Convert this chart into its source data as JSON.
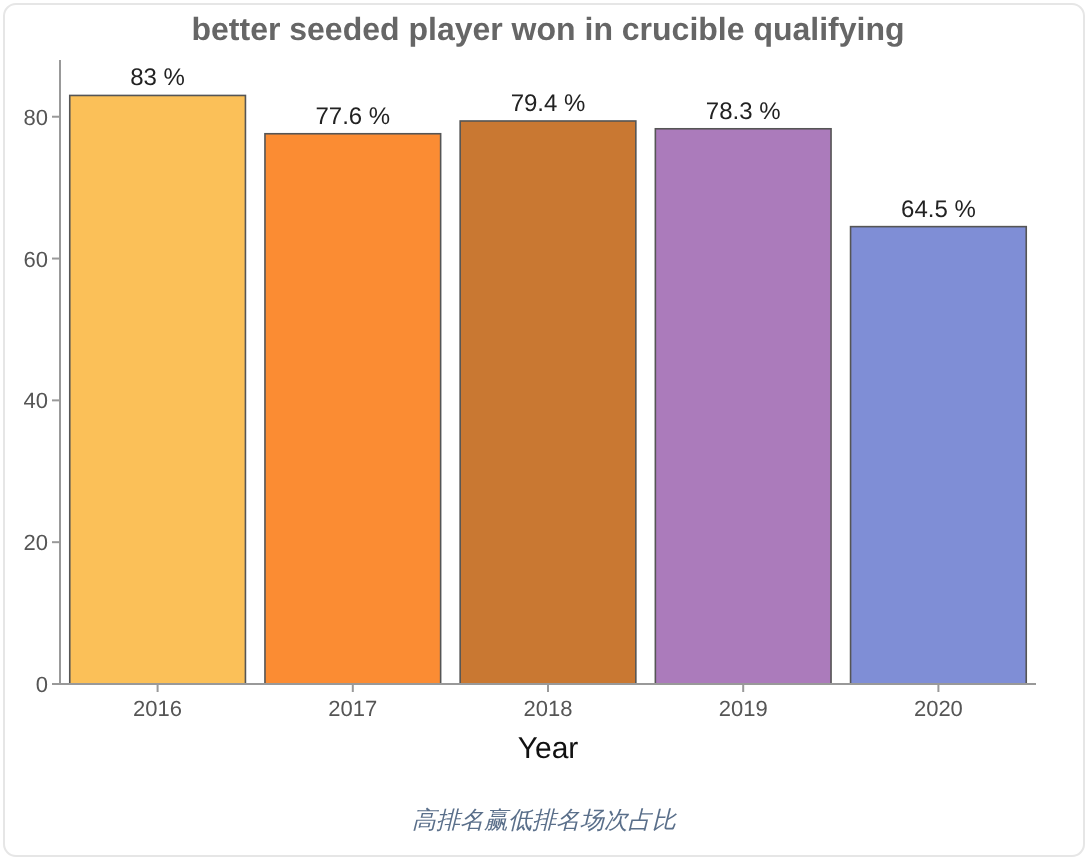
{
  "chart_data": {
    "type": "bar",
    "title": "better seeded player won in crucible qualifying",
    "xlabel": "Year",
    "categories": [
      "2016",
      "2017",
      "2018",
      "2019",
      "2020"
    ],
    "values": [
      83,
      77.6,
      79.4,
      78.3,
      64.5
    ],
    "value_labels": [
      "83 %",
      "77.6 %",
      "79.4 %",
      "78.3 %",
      "64.5 %"
    ],
    "colors": [
      "#fbc058",
      "#fb8c33",
      "#c97832",
      "#ab7bbb",
      "#7f8ed6"
    ],
    "ylim": [
      0,
      88
    ],
    "yticks": [
      0,
      20,
      40,
      60,
      80
    ],
    "grid": false,
    "annotations": [
      "高排名赢低排名场次占比"
    ]
  }
}
